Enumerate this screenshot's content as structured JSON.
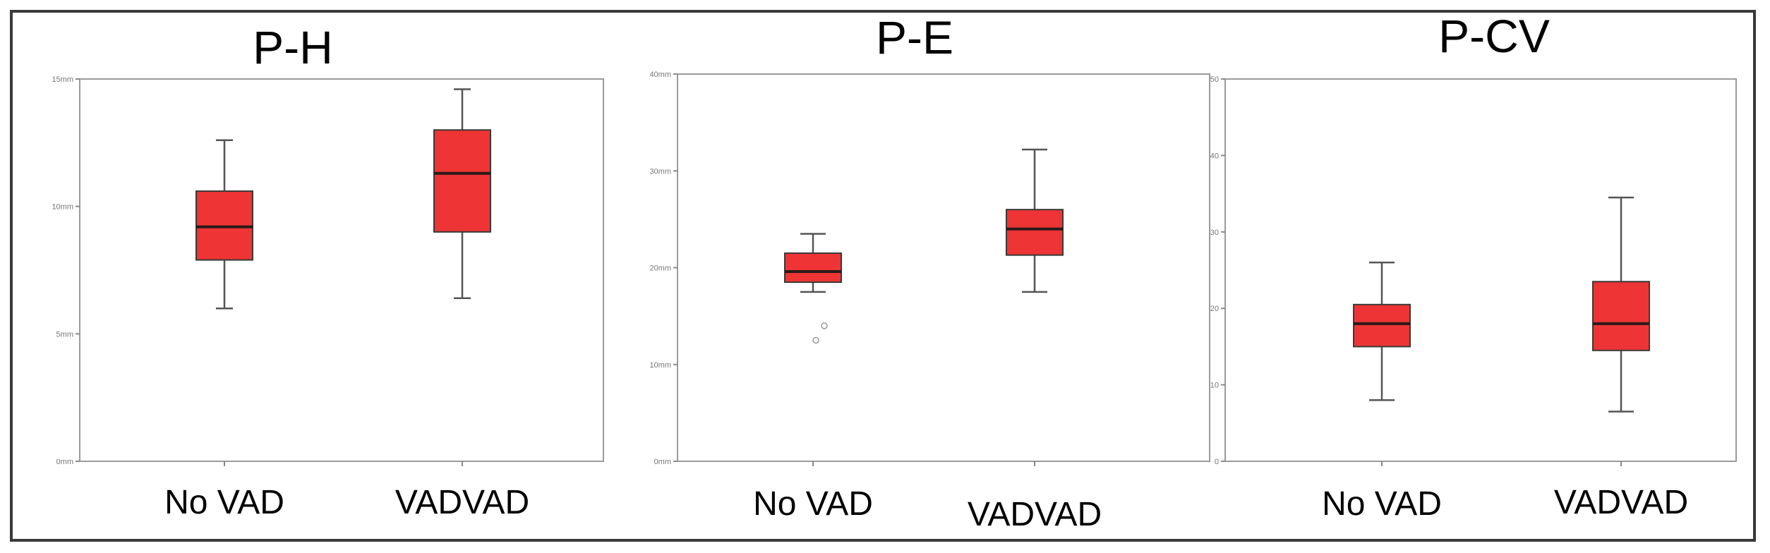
{
  "colors": {
    "box_fill": "#ee3434",
    "box_stroke": "#3a3a3a",
    "median": "#2a1a1a",
    "whisker": "#555555",
    "plot_border": "#9a9a9a",
    "outer_border": "#3a3a3a"
  },
  "chart_data": [
    {
      "type": "box",
      "title": "P-H",
      "categories": [
        "No VAD",
        "VADVAD"
      ],
      "y_ticks": [
        "0mm",
        "5mm",
        "10mm",
        "15mm"
      ],
      "ylim": [
        0,
        15
      ],
      "series": [
        {
          "category": "No VAD",
          "min": 6.0,
          "q1": 7.9,
          "median": 9.2,
          "q3": 10.6,
          "max": 12.6,
          "outliers": []
        },
        {
          "category": "VADVAD",
          "min": 6.4,
          "q1": 9.0,
          "median": 11.3,
          "q3": 13.0,
          "max": 14.6,
          "outliers": []
        }
      ]
    },
    {
      "type": "box",
      "title": "P-E",
      "categories": [
        "No VAD",
        "VADVAD"
      ],
      "y_ticks": [
        "0mm",
        "10mm",
        "20mm",
        "30mm",
        "40mm"
      ],
      "ylim": [
        0,
        40
      ],
      "series": [
        {
          "category": "No VAD",
          "min": 17.5,
          "q1": 18.5,
          "median": 19.6,
          "q3": 21.5,
          "max": 23.5,
          "outliers": [
            12.5,
            14.0
          ]
        },
        {
          "category": "VADVAD",
          "min": 17.5,
          "q1": 21.3,
          "median": 24.0,
          "q3": 26.0,
          "max": 32.2,
          "outliers": []
        }
      ]
    },
    {
      "type": "box",
      "title": "P-CV",
      "categories": [
        "No VAD",
        "VADVAD"
      ],
      "y_ticks": [
        "0",
        "10",
        "20",
        "30",
        "40",
        "50"
      ],
      "ylim": [
        0,
        50
      ],
      "series": [
        {
          "category": "No VAD",
          "min": 8.0,
          "q1": 15.0,
          "median": 18.0,
          "q3": 20.5,
          "max": 26.0,
          "outliers": []
        },
        {
          "category": "VADVAD",
          "min": 6.5,
          "q1": 14.5,
          "median": 18.0,
          "q3": 23.5,
          "max": 34.5,
          "outliers": []
        }
      ]
    }
  ]
}
